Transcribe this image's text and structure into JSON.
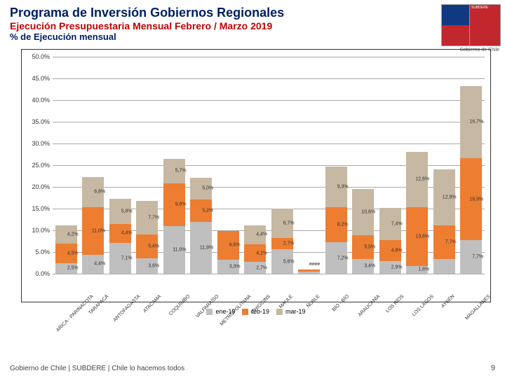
{
  "header": {
    "title1": "Programa de Inversión Gobiernos Regionales",
    "title1_color": "#002060",
    "title1_fontsize": 18,
    "title2": "Ejecución Presupuestaria Mensual Febrero / Marzo 2019",
    "title2_color": "#c00000",
    "title2_fontsize": 14,
    "title3": "% de Ejecución mensual",
    "title3_color": "#002060",
    "title3_fontsize": 13
  },
  "logo": {
    "label": "SUBDERE",
    "sub": "Gobierno de Chile"
  },
  "chart": {
    "type": "stacked-bar",
    "ylim": [
      0,
      50
    ],
    "ytick_step": 5,
    "ytick_suffix": "%",
    "grid_color": "#aaaaaa",
    "border_color": "#333333",
    "background_color": "#ffffff",
    "label_fontsize": 7,
    "series": [
      {
        "name": "ene-19",
        "color": "#bfbfbf"
      },
      {
        "name": "feb-19",
        "color": "#ed7d31"
      },
      {
        "name": "mar-19",
        "color": "#c6b8a2"
      }
    ],
    "categories": [
      "ARICA - PARINACOTA",
      "TARAPACÁ",
      "ANTOFAGASTA",
      "ATACAMA",
      "COQUIMBO",
      "VALPARAÍSO",
      "METROPOLITANA",
      "O'HIGGINS",
      "MAULE",
      "ÑUBLE",
      "BÍO - BÍO",
      "ARAUCANÍA",
      "LOS RÍOS",
      "LOS LAGOS",
      "AYSÉN",
      "MAGALLANES"
    ],
    "data": [
      {
        "ene": 2.5,
        "feb": 4.5,
        "mar": 4.2,
        "ene_lbl": "2,5%",
        "feb_lbl": "4,5%",
        "mar_lbl": "4,2%"
      },
      {
        "ene": 4.4,
        "feb": 11.0,
        "mar": 6.8,
        "ene_lbl": "4,4%",
        "feb_lbl": "11,0%",
        "mar_lbl": "6,8%"
      },
      {
        "ene": 7.1,
        "feb": 4.4,
        "mar": 5.8,
        "ene_lbl": "7,1%",
        "feb_lbl": "4,4%",
        "mar_lbl": "5,8%"
      },
      {
        "ene": 3.6,
        "feb": 5.4,
        "mar": 7.7,
        "ene_lbl": "3,6%",
        "feb_lbl": "5,4%",
        "mar_lbl": "7,7%"
      },
      {
        "ene": 11.0,
        "feb": 9.8,
        "mar": 5.7,
        "ene_lbl": "11,0%",
        "feb_lbl": "9,8%",
        "mar_lbl": "5,7%"
      },
      {
        "ene": 11.9,
        "feb": 5.2,
        "mar": 5.0,
        "ene_lbl": "11,9%",
        "feb_lbl": "5,2%",
        "mar_lbl": "5,0%"
      },
      {
        "ene": 3.3,
        "feb": 6.6,
        "mar": null,
        "ene_lbl": "3,3%",
        "feb_lbl": "6,6%",
        "mar_lbl": ""
      },
      {
        "ene": 2.7,
        "feb": 4.1,
        "mar": 4.4,
        "ene_lbl": "2,7%",
        "feb_lbl": "4,1%",
        "mar_lbl": "4,4%"
      },
      {
        "ene": 5.6,
        "feb": 2.7,
        "mar": 6.7,
        "ene_lbl": "5,6%",
        "feb_lbl": "2,7%",
        "mar_lbl": "6,7%"
      },
      {
        "ene": 0.5,
        "feb": 0.5,
        "mar": null,
        "ene_lbl": "",
        "feb_lbl": "",
        "mar_lbl": "####"
      },
      {
        "ene": 7.2,
        "feb": 8.2,
        "mar": 9.3,
        "ene_lbl": "7,2%",
        "feb_lbl": "8,2%",
        "mar_lbl": "9,3%"
      },
      {
        "ene": 3.4,
        "feb": 5.5,
        "mar": 10.6,
        "ene_lbl": "3,4%",
        "feb_lbl": "5,5%",
        "mar_lbl": "10,6%"
      },
      {
        "ene": 2.9,
        "feb": 4.8,
        "mar": 7.4,
        "ene_lbl": "2,9%",
        "feb_lbl": "4,8%",
        "mar_lbl": "7,4%"
      },
      {
        "ene": 1.8,
        "feb": 13.6,
        "mar": 12.6,
        "ene_lbl": "1,8%",
        "feb_lbl": "13,6%",
        "mar_lbl": "12,6%"
      },
      {
        "ene": 3.4,
        "feb": 7.7,
        "mar": 12.9,
        "ene_lbl": "",
        "feb_lbl": "7,7%",
        "mar_lbl": "12,9%"
      },
      {
        "ene": 7.7,
        "feb": 18.9,
        "mar": 16.7,
        "ene_lbl": "7,7%",
        "feb_lbl": "18,9%",
        "mar_lbl": "16,7%"
      }
    ]
  },
  "footer": {
    "text": "Gobierno de Chile | SUBDERE | Chile lo hacemos todos",
    "page_num": "9"
  }
}
